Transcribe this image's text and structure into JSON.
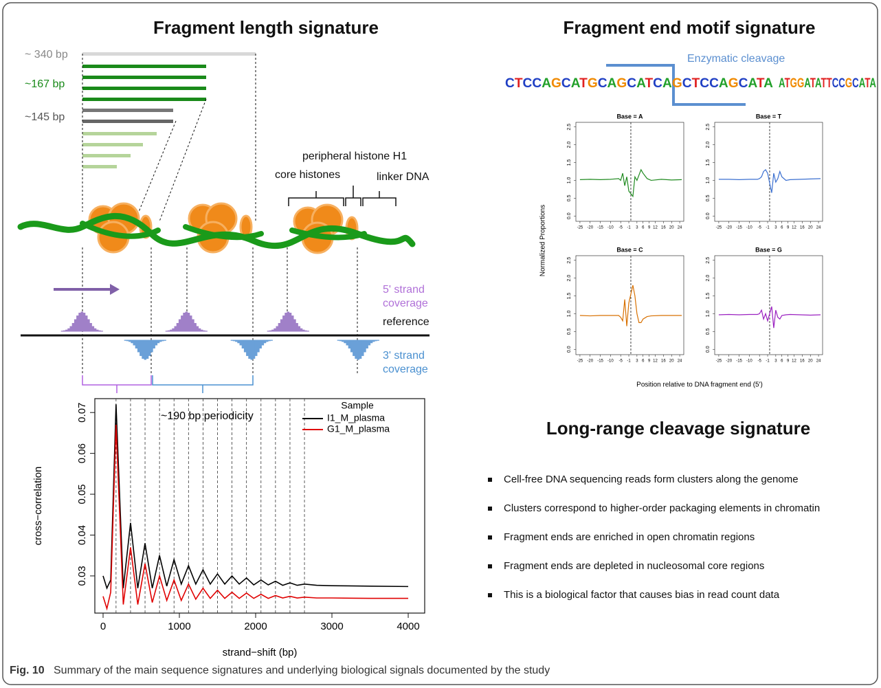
{
  "left_panel": {
    "title": "Fragment length signature",
    "length_labels": [
      "~ 340 bp",
      "~167 bp",
      "~145 bp"
    ],
    "annotations": {
      "h1": "peripheral histone H1",
      "core": "core histones",
      "linker": "linker DNA",
      "strand5": [
        "5' strand",
        "coverage"
      ],
      "reference": "reference",
      "strand3": [
        "3' strand",
        "coverage"
      ]
    }
  },
  "right_panel": {
    "title": "Fragment end motif signature",
    "cleavage": "Enzymatic cleavage",
    "sequence": [
      "CTCCAGCATGCAGCATCAGCTCCAGCATA",
      "ATGGATATTCCGCATA"
    ],
    "base_colors": {
      "A": "#22a02a",
      "C": "#1f3fc4",
      "G": "#f08a00",
      "T": "#e02020"
    },
    "ylabel": "Normalized Proportions",
    "xlabel": "Position relative to DNA fragment end (5')"
  },
  "long_range": {
    "title": "Long-range cleavage signature",
    "bullets": [
      "Cell-free DNA sequencing reads form clusters along the genome",
      "Clusters correspond to higher-order packaging elements in chromatin",
      "Fragment ends are enriched in open chromatin regions",
      "Fragment ends are depleted in nucleosomal core regions",
      "This is a biological factor that causes bias in read count data"
    ]
  },
  "caption": {
    "label": "Fig. 10",
    "text": "Summary of the main sequence signatures and underlying biological signals documented by the study"
  },
  "chart_data": [
    {
      "type": "line",
      "xlabel": "strand−shift (bp)",
      "ylabel": "cross−correlation",
      "annotation": "~190 bp periodicity",
      "legend_title": "Sample",
      "x": [
        0,
        50,
        100,
        170,
        265,
        360,
        455,
        550,
        645,
        740,
        835,
        930,
        1025,
        1120,
        1215,
        1310,
        1405,
        1500,
        1595,
        1690,
        1785,
        1880,
        1975,
        2070,
        2165,
        2260,
        2355,
        2450,
        2545,
        2640,
        2800,
        3000,
        3500,
        4000
      ],
      "series": [
        {
          "name": "I1_M_plasma",
          "color": "#000000",
          "values": [
            0.03,
            0.027,
            0.029,
            0.072,
            0.027,
            0.043,
            0.027,
            0.038,
            0.027,
            0.035,
            0.0275,
            0.034,
            0.028,
            0.0325,
            0.028,
            0.0315,
            0.028,
            0.0305,
            0.028,
            0.03,
            0.028,
            0.0295,
            0.0278,
            0.029,
            0.0278,
            0.0287,
            0.0277,
            0.0283,
            0.0277,
            0.028,
            0.0277,
            0.0276,
            0.0275,
            0.0274
          ]
        },
        {
          "name": "G1_M_plasma",
          "color": "#e00000",
          "values": [
            0.025,
            0.022,
            0.026,
            0.067,
            0.023,
            0.037,
            0.023,
            0.033,
            0.0235,
            0.03,
            0.024,
            0.029,
            0.024,
            0.028,
            0.0243,
            0.027,
            0.0245,
            0.0265,
            0.0245,
            0.026,
            0.0245,
            0.0258,
            0.0245,
            0.0255,
            0.0245,
            0.0252,
            0.0246,
            0.025,
            0.0246,
            0.0248,
            0.0246,
            0.0246,
            0.0245,
            0.0245
          ]
        }
      ],
      "xlim": [
        -108,
        4216
      ],
      "ylim": [
        0.0209,
        0.0734
      ],
      "xticks": [
        0,
        1000,
        2000,
        3000,
        4000
      ],
      "yticks": [
        0.03,
        0.04,
        0.05,
        0.06,
        0.07
      ],
      "vlines": [
        170,
        360,
        550,
        740,
        930,
        1120,
        1310,
        1500,
        1690,
        1880,
        2070,
        2260,
        2450,
        2640
      ]
    },
    {
      "type": "line",
      "title": "Base = A",
      "color": "#1f8a1f",
      "x": [
        -25,
        -20,
        -15,
        -10,
        -6,
        -5,
        -4,
        -3,
        -2,
        -1,
        1,
        2,
        3,
        4,
        5,
        6,
        8,
        10,
        15,
        20,
        25
      ],
      "values": [
        1.02,
        1.03,
        1.02,
        1.03,
        1.05,
        1.0,
        1.2,
        0.85,
        1.1,
        0.7,
        0.55,
        1.1,
        1.0,
        1.15,
        1.3,
        1.2,
        1.05,
        1.0,
        1.03,
        1.01,
        1.02
      ],
      "xlim": [
        -27,
        26
      ],
      "ylim": [
        -0.15,
        2.63
      ],
      "xticks": [
        -25,
        -20,
        -15,
        -10,
        -5,
        -1,
        3,
        6,
        9,
        12,
        16,
        20,
        24
      ],
      "yticks": [
        {
          "value": 0,
          "label": "0.0"
        },
        0.5,
        {
          "value": 1,
          "label": "1.0"
        },
        1.5,
        {
          "value": 2,
          "label": "2.0"
        },
        2.5
      ],
      "vline": 0
    },
    {
      "type": "line",
      "title": "Base = T",
      "color": "#3a6fd0",
      "x": [
        -25,
        -20,
        -15,
        -10,
        -6,
        -5,
        -4,
        -3,
        -2,
        -1,
        1,
        2,
        3,
        4,
        5,
        6,
        8,
        10,
        15,
        20,
        25
      ],
      "values": [
        1.03,
        1.03,
        1.02,
        1.03,
        1.03,
        1.05,
        1.1,
        1.25,
        1.3,
        1.2,
        0.65,
        1.2,
        0.95,
        1.05,
        1.25,
        1.1,
        1.0,
        1.02,
        1.03,
        1.04,
        1.05
      ],
      "xlim": [
        -27,
        26
      ],
      "ylim": [
        -0.15,
        2.63
      ],
      "xticks": [
        -25,
        -20,
        -15,
        -10,
        -5,
        -1,
        3,
        6,
        9,
        12,
        16,
        20,
        24
      ],
      "yticks": [
        {
          "value": 0,
          "label": "0.0"
        },
        0.5,
        {
          "value": 1,
          "label": "1.0"
        },
        1.5,
        {
          "value": 2,
          "label": "2.0"
        },
        2.5
      ],
      "vline": 0
    },
    {
      "type": "line",
      "title": "Base = C",
      "color": "#d87000",
      "x": [
        -25,
        -20,
        -15,
        -10,
        -6,
        -5,
        -4,
        -3,
        -2,
        -1,
        1,
        2,
        3,
        4,
        5,
        6,
        8,
        10,
        15,
        20,
        25
      ],
      "values": [
        0.95,
        0.94,
        0.95,
        0.95,
        0.95,
        0.9,
        0.8,
        1.4,
        0.65,
        1.3,
        1.8,
        1.5,
        1.0,
        0.75,
        0.75,
        0.85,
        0.92,
        0.94,
        0.95,
        0.95,
        0.95
      ],
      "xlim": [
        -27,
        26
      ],
      "ylim": [
        -0.15,
        2.63
      ],
      "xticks": [
        -25,
        -20,
        -15,
        -10,
        -5,
        -1,
        3,
        6,
        9,
        12,
        16,
        20,
        24
      ],
      "yticks": [
        {
          "value": 0,
          "label": "0.0"
        },
        0.5,
        {
          "value": 1,
          "label": "1.0"
        },
        1.5,
        {
          "value": 2,
          "label": "2.0"
        },
        2.5
      ],
      "vline": 0
    },
    {
      "type": "line",
      "title": "Base = G",
      "color": "#9a20c0",
      "x": [
        -25,
        -20,
        -15,
        -10,
        -6,
        -5,
        -4,
        -3,
        -2,
        -1,
        1,
        2,
        3,
        4,
        5,
        6,
        8,
        10,
        15,
        20,
        25
      ],
      "values": [
        0.97,
        0.98,
        0.97,
        0.98,
        0.98,
        1.0,
        1.1,
        0.85,
        1.0,
        0.8,
        1.2,
        0.6,
        1.1,
        0.9,
        0.85,
        0.95,
        0.97,
        0.98,
        0.97,
        0.96,
        0.97
      ],
      "xlim": [
        -27,
        26
      ],
      "ylim": [
        -0.15,
        2.63
      ],
      "xticks": [
        -25,
        -20,
        -15,
        -10,
        -5,
        -1,
        3,
        6,
        9,
        12,
        16,
        20,
        24
      ],
      "yticks": [
        {
          "value": 0,
          "label": "0.0"
        },
        0.5,
        {
          "value": 1,
          "label": "1.0"
        },
        1.5,
        {
          "value": 2,
          "label": "2.0"
        },
        2.5
      ],
      "vline": 0
    }
  ]
}
